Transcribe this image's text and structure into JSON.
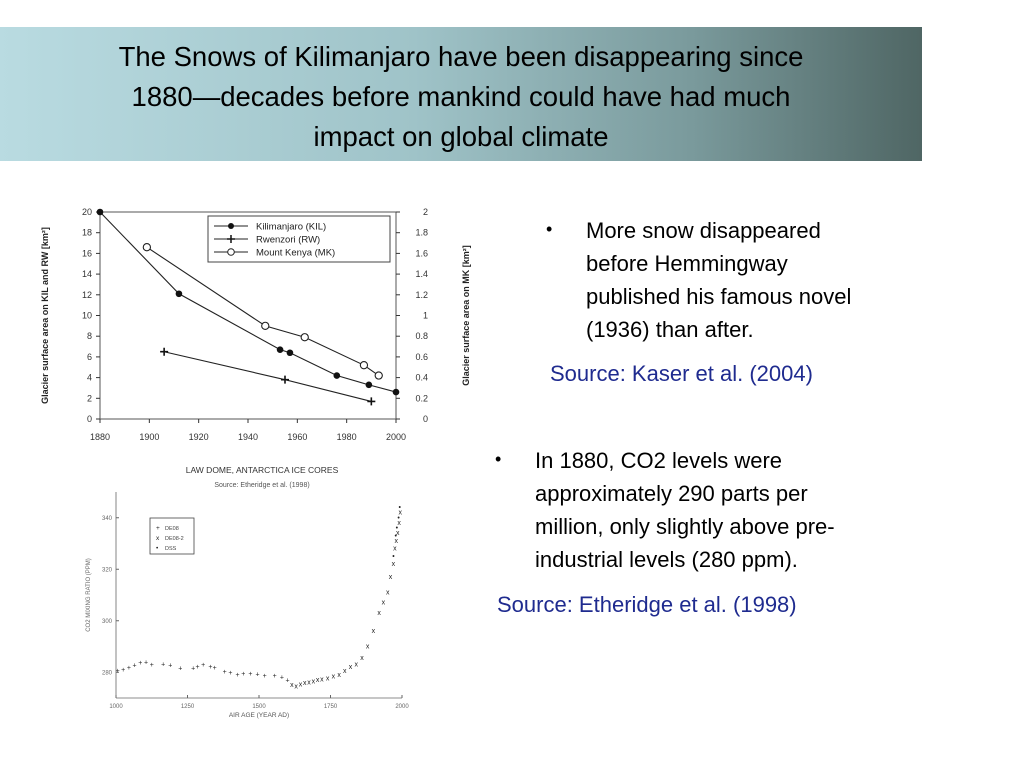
{
  "slide": {
    "title_lines": [
      "The Snows of Kilimanjaro have been disappearing since",
      "1880—decades before mankind could have had much",
      "impact on global climate"
    ],
    "bullet_1": {
      "lines": [
        "More snow disappeared",
        "before Hemmingway",
        "published his famous novel",
        "(1936) than after."
      ],
      "source": "Source: Kaser et al. (2004)"
    },
    "bullet_2": {
      "lines": [
        "In 1880, CO2 levels were",
        "approximately 290 parts per",
        "million, only slightly above pre-",
        "industrial levels (280 ppm)."
      ],
      "source": "Source: Etheridge et al. (1998)"
    },
    "colors": {
      "text": "#000000",
      "source": "#1f2b8f"
    }
  },
  "chart_data": [
    {
      "type": "line",
      "title": "",
      "x": [
        1880,
        1900,
        1920,
        1940,
        1960,
        1980,
        2000
      ],
      "xlim": [
        1880,
        2000
      ],
      "ylabel": "Glacier surface area on KIL and RW [km²]",
      "ylim": [
        0,
        20
      ],
      "y_ticks": [
        0,
        2,
        4,
        6,
        8,
        10,
        12,
        14,
        16,
        18,
        20
      ],
      "y2label": "Glacier surface area on MK [km²]",
      "y2lim": [
        0,
        2
      ],
      "y2_ticks": [
        "0",
        "0.2",
        "0.4",
        "0.6",
        "0.8",
        "1",
        "1.2",
        "1.4",
        "1.6",
        "1.8",
        "2"
      ],
      "legend_position": "top-right",
      "series": [
        {
          "name": "Kilimanjaro (KIL)",
          "marker": "filled-circle",
          "axis": "left",
          "points": [
            [
              1880,
              20.0
            ],
            [
              1912,
              12.1
            ],
            [
              1953,
              6.7
            ],
            [
              1957,
              6.4
            ],
            [
              1976,
              4.2
            ],
            [
              1989,
              3.3
            ],
            [
              2000,
              2.6
            ]
          ]
        },
        {
          "name": "Rwenzori (RW)",
          "marker": "plus",
          "axis": "left",
          "points": [
            [
              1906,
              6.5
            ],
            [
              1955,
              3.8
            ],
            [
              1990,
              1.7
            ]
          ]
        },
        {
          "name": "Mount Kenya (MK)",
          "marker": "open-circle",
          "axis": "right",
          "points": [
            [
              1899,
              1.66
            ],
            [
              1947,
              0.9
            ],
            [
              1963,
              0.79
            ],
            [
              1987,
              0.52
            ],
            [
              1993,
              0.42
            ]
          ]
        }
      ]
    },
    {
      "type": "scatter",
      "title": "LAW DOME, ANTARCTICA ICE CORES",
      "subtitle": "Source: Etheridge et al. (1998)",
      "xlabel": "AIR AGE (YEAR AD)",
      "ylabel": "CO2 MIXING RATIO (PPM)",
      "x_ticks": [
        "1000",
        "1250",
        "1500",
        "1750",
        "2000"
      ],
      "xlim": [
        1000,
        2000
      ],
      "y_ticks": [
        "280",
        "300",
        "320",
        "340"
      ],
      "ylim": [
        270,
        350
      ],
      "legend_position": "top-left",
      "series": [
        {
          "name": "DE08",
          "values": [
            [
              1006,
              280.4
            ],
            [
              1025,
              280.9
            ],
            [
              1045,
              281.7
            ],
            [
              1065,
              282.6
            ],
            [
              1085,
              283.5
            ],
            [
              1105,
              283.8
            ],
            [
              1125,
              282.9
            ],
            [
              1165,
              283.1
            ],
            [
              1190,
              282.7
            ],
            [
              1225,
              281.4
            ],
            [
              1270,
              281.5
            ],
            [
              1285,
              282.1
            ],
            [
              1305,
              282.8
            ],
            [
              1330,
              282.0
            ],
            [
              1345,
              281.7
            ],
            [
              1380,
              280.1
            ],
            [
              1400,
              279.7
            ],
            [
              1425,
              278.9
            ],
            [
              1445,
              279.3
            ],
            [
              1470,
              279.4
            ],
            [
              1495,
              279.2
            ],
            [
              1520,
              278.5
            ],
            [
              1555,
              278.6
            ],
            [
              1580,
              277.9
            ],
            [
              1600,
              276.8
            ]
          ]
        },
        {
          "name": "DE08-2",
          "values": [
            [
              1615,
              275.1
            ],
            [
              1630,
              274.5
            ],
            [
              1645,
              275.2
            ],
            [
              1660,
              275.8
            ],
            [
              1675,
              276.0
            ],
            [
              1690,
              276.5
            ],
            [
              1705,
              277.0
            ],
            [
              1720,
              277.2
            ],
            [
              1740,
              277.5
            ],
            [
              1760,
              278.3
            ],
            [
              1780,
              279.0
            ],
            [
              1800,
              280.5
            ],
            [
              1820,
              282.0
            ],
            [
              1840,
              283.0
            ],
            [
              1860,
              285.5
            ],
            [
              1880,
              290.0
            ],
            [
              1900,
              296.0
            ],
            [
              1920,
              303.0
            ],
            [
              1935,
              307.0
            ],
            [
              1950,
              311.0
            ],
            [
              1960,
              317.0
            ],
            [
              1970,
              322.0
            ],
            [
              1975,
              328.0
            ],
            [
              1980,
              331.0
            ],
            [
              1985,
              334.0
            ],
            [
              1990,
              338.0
            ],
            [
              1994,
              342.0
            ]
          ]
        },
        {
          "name": "DSS",
          "values": [
            [
              1970,
              325.0
            ],
            [
              1978,
              333.0
            ],
            [
              1982,
              336.0
            ],
            [
              1988,
              340.0
            ],
            [
              1992,
              344.0
            ]
          ]
        }
      ]
    }
  ]
}
